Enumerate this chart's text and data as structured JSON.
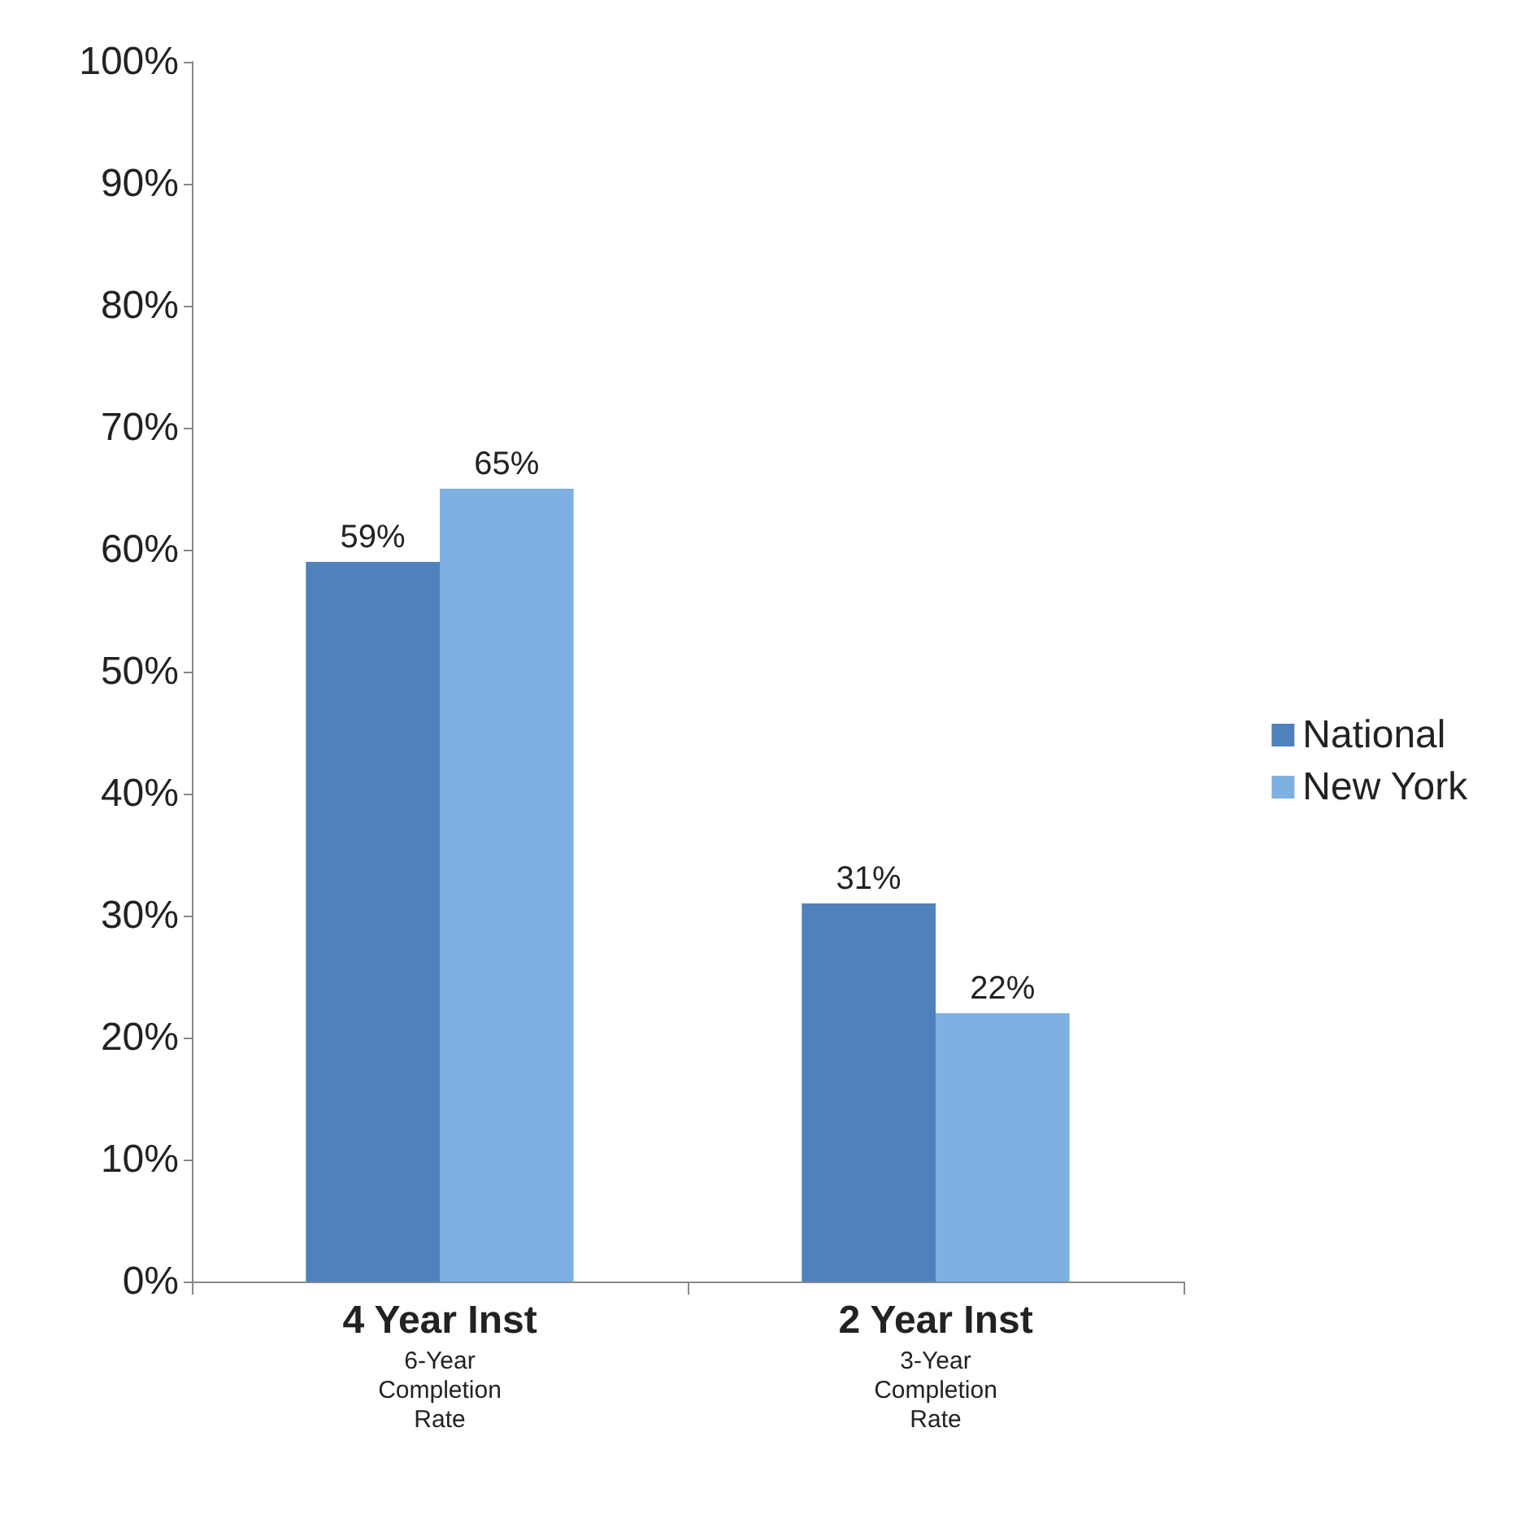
{
  "chart_data": {
    "type": "bar",
    "categories": [
      "4 Year Inst\n6-Year\nCompletion\nRate",
      "2 Year Inst\n3-Year\nCompletion\nRate"
    ],
    "series": [
      {
        "name": "National",
        "color": "#4f81bd",
        "values": [
          59,
          31
        ],
        "value_labels": [
          "59%",
          "31%"
        ]
      },
      {
        "name": "New York",
        "color": "#7eb0e2",
        "values": [
          65,
          22
        ],
        "value_labels": [
          "65%",
          "22%"
        ]
      }
    ],
    "ylim": [
      0,
      100
    ],
    "yticks": [
      {
        "value": 0,
        "label": "0%"
      },
      {
        "value": 10,
        "label": "10%"
      },
      {
        "value": 20,
        "label": "20%"
      },
      {
        "value": 30,
        "label": "30%"
      },
      {
        "value": 40,
        "label": "40%"
      },
      {
        "value": 50,
        "label": "50%"
      },
      {
        "value": 60,
        "label": "60%"
      },
      {
        "value": 70,
        "label": "70%"
      },
      {
        "value": 80,
        "label": "80%"
      },
      {
        "value": 90,
        "label": "90%"
      },
      {
        "value": 100,
        "label": "100%"
      }
    ],
    "grid": false,
    "legend": "right"
  }
}
